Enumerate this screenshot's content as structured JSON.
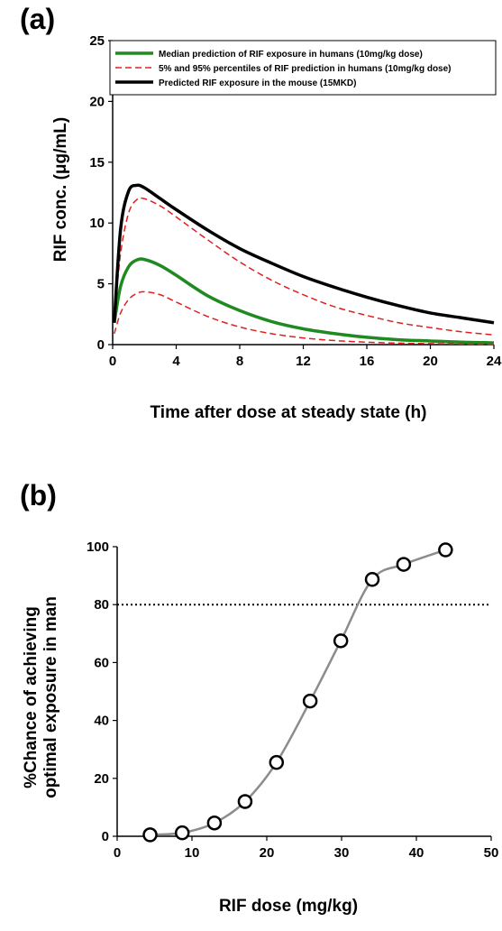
{
  "panels": [
    {
      "label": "(a)",
      "ylabel": "RIF conc. (μg/mL)",
      "xlabel": "Time after dose at steady state (h)"
    },
    {
      "label": "(b)",
      "ylabel_line1": "%Chance of achieving",
      "ylabel_line2": "optimal exposure in man",
      "xlabel": "RIF dose (mg/kg)"
    }
  ],
  "legend": [
    {
      "text": "Median prediction of RIF exposure in humans  (10mg/kg dose)",
      "color": "#1f8a1f",
      "style": "solid"
    },
    {
      "text": "5% and 95% percentiles of RIF prediction in humans (10mg/kg dose)",
      "color": "#e02020",
      "style": "dashed"
    },
    {
      "text": "Predicted RIF exposure in the mouse (15MKD)",
      "color": "#000000",
      "style": "solid"
    }
  ],
  "chart_data": [
    {
      "type": "line",
      "xlim": [
        0,
        24
      ],
      "ylim": [
        0,
        25
      ],
      "x_ticks": [
        "0",
        "4",
        "8",
        "12",
        "16",
        "20",
        "24"
      ],
      "y_ticks": [
        "0",
        "5",
        "10",
        "15",
        "20",
        "25"
      ],
      "grid": false,
      "legend_position": "top",
      "series": [
        {
          "name": "Median prediction of RIF exposure in humans  (10mg/kg dose)",
          "color": "#1f8a1f",
          "x": [
            0.1,
            0.5,
            1.0,
            1.5,
            2.0,
            3.0,
            4.0,
            6.0,
            8.0,
            10.0,
            12.0,
            14.0,
            16.0,
            18.0,
            20.0,
            22.0,
            24.0
          ],
          "y": [
            1.8,
            4.8,
            6.4,
            6.95,
            7.0,
            6.5,
            5.7,
            4.0,
            2.8,
            1.9,
            1.3,
            0.9,
            0.6,
            0.4,
            0.3,
            0.2,
            0.15
          ]
        },
        {
          "name": "5% percentile",
          "color": "#e02020",
          "x": [
            0.1,
            0.5,
            1.0,
            1.5,
            2.0,
            3.0,
            4.0,
            6.0,
            8.0,
            10.0,
            12.0,
            14.0,
            16.0,
            18.0,
            20.0,
            22.0,
            24.0
          ],
          "y": [
            0.9,
            2.6,
            3.7,
            4.2,
            4.35,
            4.1,
            3.5,
            2.3,
            1.45,
            0.9,
            0.55,
            0.33,
            0.2,
            0.12,
            0.08,
            0.05,
            0.03
          ]
        },
        {
          "name": "95% percentile",
          "color": "#e02020",
          "x": [
            0.1,
            0.5,
            1.0,
            1.5,
            2.0,
            3.0,
            4.0,
            6.0,
            8.0,
            10.0,
            12.0,
            14.0,
            16.0,
            18.0,
            20.0,
            22.0,
            24.0
          ],
          "y": [
            2.0,
            7.5,
            10.8,
            11.9,
            12.0,
            11.4,
            10.5,
            8.6,
            6.8,
            5.3,
            4.1,
            3.1,
            2.4,
            1.8,
            1.4,
            1.05,
            0.8
          ]
        },
        {
          "name": "Predicted RIF exposure in the mouse (15MKD)",
          "color": "#000000",
          "x": [
            0.1,
            0.5,
            1.0,
            1.5,
            2.0,
            3.0,
            4.0,
            6.0,
            8.0,
            10.0,
            12.0,
            14.0,
            16.0,
            18.0,
            20.0,
            22.0,
            24.0
          ],
          "y": [
            1.8,
            9.5,
            12.6,
            13.1,
            12.9,
            12.0,
            11.1,
            9.4,
            7.9,
            6.7,
            5.6,
            4.7,
            3.9,
            3.2,
            2.6,
            2.2,
            1.8
          ]
        }
      ]
    },
    {
      "type": "line",
      "xlim": [
        0,
        50
      ],
      "ylim": [
        0,
        100
      ],
      "x_ticks": [
        "0",
        "10",
        "20",
        "30",
        "40",
        "50"
      ],
      "y_ticks": [
        "0",
        "20",
        "40",
        "60",
        "80",
        "100"
      ],
      "grid": false,
      "reference_line": {
        "y": 80,
        "style": "dotted"
      },
      "series": [
        {
          "color": "#8c8c8c",
          "marker": "open-circle",
          "x": [
            4.4,
            8.7,
            13,
            17.1,
            21.3,
            25.8,
            29.9,
            34.1,
            38.3,
            43.9
          ],
          "y": [
            0.5,
            1.2,
            4.6,
            12,
            25.5,
            46.7,
            67.5,
            88.7,
            93.9,
            98.9
          ]
        }
      ]
    }
  ]
}
